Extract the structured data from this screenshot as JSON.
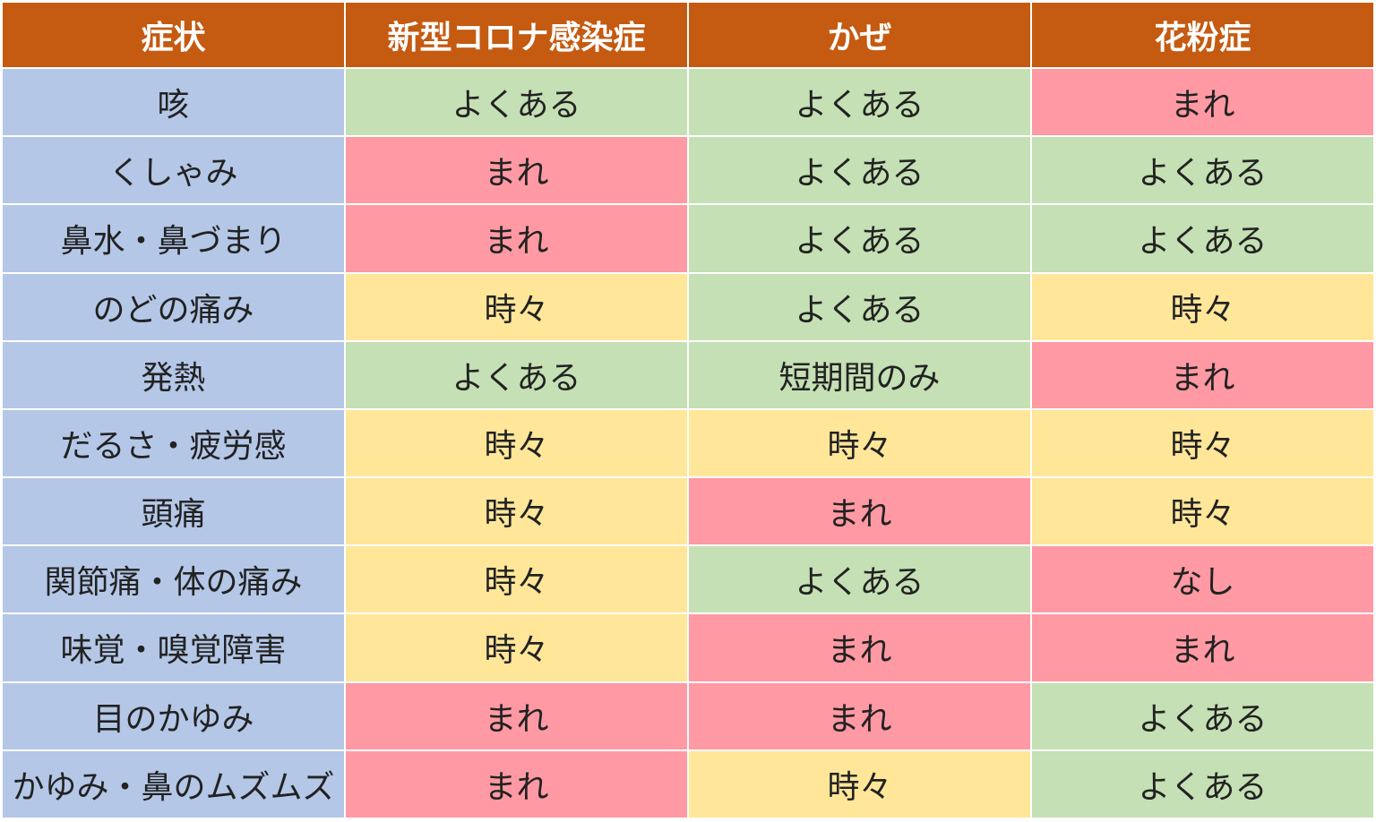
{
  "table": {
    "headers": [
      "症状",
      "新型コロナ感染症",
      "かぜ",
      "花粉症"
    ],
    "rows": [
      {
        "symptom": "咳",
        "values": [
          "よくある",
          "よくある",
          "まれ"
        ]
      },
      {
        "symptom": "くしゃみ",
        "values": [
          "まれ",
          "よくある",
          "よくある"
        ]
      },
      {
        "symptom": "鼻水・鼻づまり",
        "values": [
          "まれ",
          "よくある",
          "よくある"
        ]
      },
      {
        "symptom": "のどの痛み",
        "values": [
          "時々",
          "よくある",
          "時々"
        ]
      },
      {
        "symptom": "発熱",
        "values": [
          "よくある",
          "短期間のみ",
          "まれ"
        ]
      },
      {
        "symptom": "だるさ・疲労感",
        "values": [
          "時々",
          "時々",
          "時々"
        ]
      },
      {
        "symptom": "頭痛",
        "values": [
          "時々",
          "まれ",
          "時々"
        ]
      },
      {
        "symptom": "関節痛・体の痛み",
        "values": [
          "時々",
          "よくある",
          "なし"
        ]
      },
      {
        "symptom": "味覚・嗅覚障害",
        "values": [
          "時々",
          "まれ",
          "まれ"
        ]
      },
      {
        "symptom": "目のかゆみ",
        "values": [
          "まれ",
          "まれ",
          "よくある"
        ]
      },
      {
        "symptom": "かゆみ・鼻のムズムズ",
        "values": [
          "まれ",
          "時々",
          "よくある"
        ]
      }
    ]
  },
  "colors": {
    "header_bg": "#c55a11",
    "symptom_bg": "#b4c7e7",
    "common_bg": "#c5e0b4",
    "rare_bg": "#ff99a3",
    "sometimes_bg": "#ffe699"
  }
}
